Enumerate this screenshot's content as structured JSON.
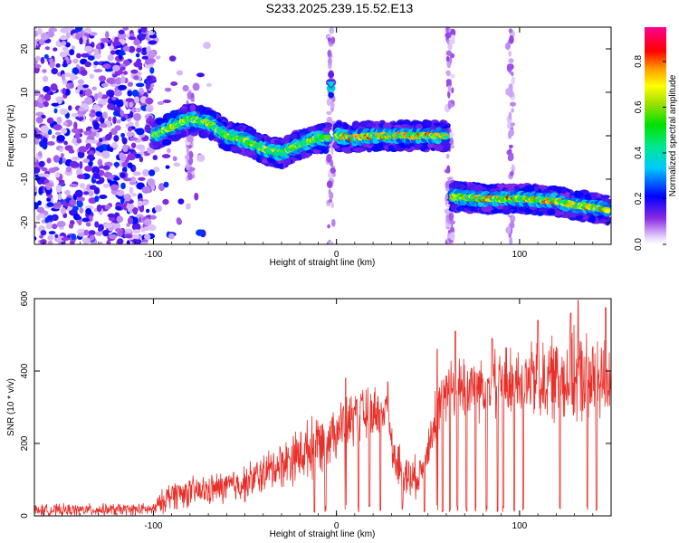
{
  "title": "S233.2025.239.15.52.E13",
  "chart_data": [
    {
      "type": "heatmap",
      "xlabel": "Height of straight line (km)",
      "ylabel": "Frequency (Hz)",
      "xlim": [
        -165,
        150
      ],
      "ylim": [
        -25,
        25
      ],
      "xticks": [
        -100,
        0,
        100
      ],
      "yticks": [
        -20,
        -10,
        0,
        10,
        20
      ],
      "colorbar": {
        "label": "Normalized spectral amplitude",
        "range": [
          0.0,
          0.95
        ],
        "ticks": [
          0.0,
          0.2,
          0.4,
          0.6,
          0.8
        ]
      },
      "ridges": [
        {
          "x": [
            -100,
            -90,
            -80,
            -70,
            -60,
            -50,
            -40,
            -30,
            -20,
            -10,
            -5
          ],
          "y": [
            0,
            2,
            4,
            3,
            0,
            -1,
            -3,
            -4,
            -2,
            -0.5,
            -0.5
          ],
          "peak": 0.75
        },
        {
          "x": [
            0,
            10,
            20,
            30,
            40,
            50,
            60
          ],
          "y": [
            0,
            -0.5,
            0,
            0,
            0,
            0,
            0
          ],
          "peak": 0.9
        },
        {
          "x": [
            63,
            80,
            100,
            120,
            130,
            140,
            148
          ],
          "y": [
            -14,
            -14.5,
            -14.5,
            -15,
            -16,
            -16.5,
            -17
          ],
          "peak": 0.9
        },
        {
          "x": [
            -3,
            -3
          ],
          "y": [
            12,
            14
          ],
          "peak": 0.5
        }
      ]
    },
    {
      "type": "line",
      "xlabel": "Height of straight line (km)",
      "ylabel": "SNR (10 * v/v)",
      "xlim": [
        -165,
        150
      ],
      "ylim": [
        0,
        600
      ],
      "xticks": [
        -100,
        0,
        100
      ],
      "yticks": [
        0,
        200,
        400,
        600
      ],
      "color": "#e8302a",
      "envelope": {
        "x": [
          -165,
          -100,
          -95,
          -90,
          -70,
          -50,
          -35,
          -20,
          -10,
          0,
          10,
          20,
          28,
          32,
          40,
          45,
          50,
          55,
          60,
          70,
          80,
          90,
          100,
          110,
          120,
          130,
          140,
          150
        ],
        "base": [
          15,
          18,
          40,
          60,
          70,
          90,
          130,
          170,
          200,
          240,
          270,
          290,
          300,
          150,
          100,
          110,
          180,
          300,
          340,
          360,
          360,
          370,
          370,
          370,
          380,
          380,
          380,
          380
        ],
        "amp": [
          20,
          20,
          40,
          50,
          50,
          60,
          70,
          90,
          100,
          90,
          90,
          80,
          70,
          80,
          80,
          60,
          70,
          90,
          100,
          110,
          110,
          120,
          120,
          130,
          140,
          150,
          150,
          150
        ]
      },
      "peaks": [
        {
          "x": 5,
          "y": 380
        },
        {
          "x": 28,
          "y": 370
        },
        {
          "x": 55,
          "y": 460
        },
        {
          "x": 65,
          "y": 510
        },
        {
          "x": 85,
          "y": 490
        },
        {
          "x": 110,
          "y": 540
        },
        {
          "x": 128,
          "y": 560
        },
        {
          "x": 132,
          "y": 595
        },
        {
          "x": 147,
          "y": 575
        }
      ],
      "dropouts": [
        -12,
        -6,
        5,
        12,
        18,
        24,
        36,
        48,
        55,
        58,
        62,
        66,
        71,
        76,
        82,
        88,
        91,
        97,
        102,
        110,
        122,
        137,
        142
      ]
    }
  ]
}
